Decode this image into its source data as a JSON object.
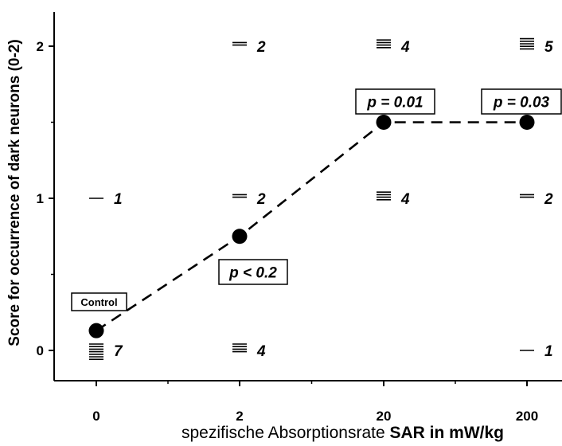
{
  "chart_data": {
    "type": "scatter",
    "title": "",
    "xlabel_prefix": "spezifische Absorptionsrate",
    "xlabel_bold": "SAR in mW/kg",
    "ylabel": "Score for occurrence of dark neurons (0-2)",
    "categories": [
      "0",
      "2",
      "20",
      "200"
    ],
    "yticks": [
      "0",
      "1",
      "2"
    ],
    "ylim": [
      -0.2,
      2.2
    ],
    "grid": false,
    "mean_series": {
      "style": "dashed line with filled circles",
      "values": [
        0.13,
        0.75,
        1.5,
        1.5
      ]
    },
    "counts": [
      {
        "category": "0",
        "score": 1,
        "n": 1,
        "label": "1"
      },
      {
        "category": "0",
        "score": 0,
        "n": 7,
        "label": "7"
      },
      {
        "category": "2",
        "score": 2,
        "n": 2,
        "label": "2"
      },
      {
        "category": "2",
        "score": 1,
        "n": 2,
        "label": "2"
      },
      {
        "category": "2",
        "score": 0,
        "n": 4,
        "label": "4"
      },
      {
        "category": "20",
        "score": 2,
        "n": 4,
        "label": "4"
      },
      {
        "category": "20",
        "score": 1,
        "n": 4,
        "label": "4"
      },
      {
        "category": "200",
        "score": 2,
        "n": 5,
        "label": "5"
      },
      {
        "category": "200",
        "score": 1,
        "n": 2,
        "label": "2"
      },
      {
        "category": "200",
        "score": 0,
        "n": 1,
        "label": "1"
      }
    ],
    "annotations": [
      {
        "category": "0",
        "text": "Control"
      },
      {
        "category": "2",
        "text": "p < 0.2"
      },
      {
        "category": "20",
        "text": "p = 0.01"
      },
      {
        "category": "200",
        "text": "p = 0.03"
      }
    ]
  }
}
